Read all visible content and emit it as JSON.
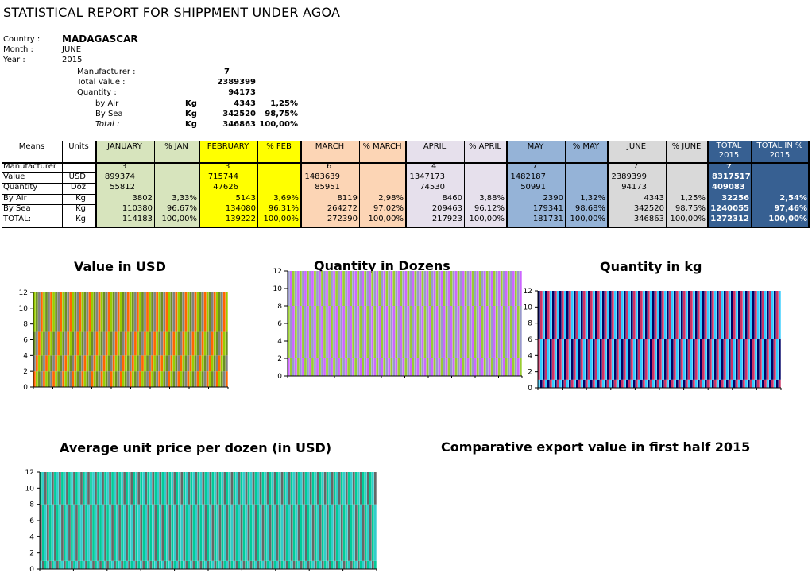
{
  "report": {
    "title": "STATISTICAL REPORT FOR SHIPPMENT UNDER AGOA",
    "country_label": "Country :",
    "country": "MADAGASCAR",
    "month_label": "Month :",
    "month": "JUNE",
    "year_label": "Year :",
    "year": "2015",
    "manufacturer_label": "Manufacturer :",
    "manufacturer": "7",
    "total_value_label": "Total Value :",
    "total_value": "2389399",
    "quantity_label": "Quantity :",
    "quantity": "94173",
    "by_air_label": "by Air",
    "by_air_unit": "Kg",
    "by_air_value": "4343",
    "by_air_pct": "1,25%",
    "by_sea_label": "By Sea",
    "by_sea_unit": "Kg",
    "by_sea_value": "342520",
    "by_sea_pct": "98,75%",
    "total_label": "Total :",
    "total_unit": "Kg",
    "total_value_kg": "346863",
    "total_pct": "100,00%"
  },
  "table": {
    "headers": {
      "means": "Means",
      "units": "Units",
      "jan": "JANUARY",
      "pjan": "% JAN",
      "feb": "FEBRUARY",
      "pfeb": "% FEB",
      "mar": "MARCH",
      "pmar": "% MARCH",
      "apr": "APRIL",
      "papr": "% APRIL",
      "may": "MAY",
      "pmay": "% MAY",
      "jun": "JUNE",
      "pjun": "% JUNE",
      "tot1": "TOTAL",
      "tot2": "2015",
      "totp1": "TOTAL IN %",
      "totp2": "2015"
    },
    "rows": [
      {
        "label": "Manufacturer",
        "unit": "",
        "jan": "3",
        "pjan": "",
        "feb": "3",
        "pfeb": "",
        "mar": "6",
        "pmar": "",
        "apr": "4",
        "papr": "",
        "may": "7",
        "pmay": "",
        "jun": "7",
        "pjun": "",
        "tot": "7",
        "totp": ""
      },
      {
        "label": "Value",
        "unit": "USD",
        "jan": "899374",
        "pjan": "",
        "feb": "715744",
        "pfeb": "",
        "mar": "1483639",
        "pmar": "",
        "apr": "1347173",
        "papr": "",
        "may": "1482187",
        "pmay": "",
        "jun": "2389399",
        "pjun": "",
        "tot": "8317517",
        "totp": ""
      },
      {
        "label": "Quantity",
        "unit": "Doz",
        "jan": "55812",
        "pjan": "",
        "feb": "47626",
        "pfeb": "",
        "mar": "85951",
        "pmar": "",
        "apr": "74530",
        "papr": "",
        "may": "50991",
        "pmay": "",
        "jun": "94173",
        "pjun": "",
        "tot": "409083",
        "totp": ""
      },
      {
        "label": "By Air",
        "unit": "Kg",
        "jan": "3802",
        "pjan": "3,33%",
        "feb": "5143",
        "pfeb": "3,69%",
        "mar": "8119",
        "pmar": "2,98%",
        "apr": "8460",
        "papr": "3,88%",
        "may": "2390",
        "pmay": "1,32%",
        "jun": "4343",
        "pjun": "1,25%",
        "tot": "32256",
        "totp": "2,54%"
      },
      {
        "label": "By Sea",
        "unit": "Kg",
        "jan": "110380",
        "pjan": "96,67%",
        "feb": "134080",
        "pfeb": "96,31%",
        "mar": "264272",
        "pmar": "97,02%",
        "apr": "209463",
        "papr": "96,12%",
        "may": "179341",
        "pmay": "98,68%",
        "jun": "342520",
        "pjun": "98,75%",
        "tot": "1240055",
        "totp": "97,46%"
      },
      {
        "label": "TOTAL:",
        "unit": "Kg",
        "jan": "114183",
        "pjan": "100,00%",
        "feb": "139222",
        "pfeb": "100,00%",
        "mar": "272390",
        "pmar": "100,00%",
        "apr": "217923",
        "papr": "100,00%",
        "may": "181731",
        "pmay": "100,00%",
        "jun": "346863",
        "pjun": "100,00%",
        "tot": "1272312",
        "totp": "100,00%"
      }
    ],
    "colors": {
      "jan": "#d7e4bd",
      "feb": "#ffff00",
      "mar": "#fcd5b5",
      "apr": "#e6e0ec",
      "may": "#95b3d7",
      "jun": "#d9d9d9",
      "total": "#376092"
    }
  },
  "chart_data": [
    {
      "type": "bar",
      "title": "Value in USD",
      "ylim": [
        0,
        12
      ],
      "yticks": [
        "0",
        "2",
        "4",
        "6",
        "8",
        "10",
        "12"
      ],
      "colors": [
        "#99cc00",
        "#6b8e23",
        "#808080",
        "#ff6600"
      ]
    },
    {
      "type": "bar",
      "title": "Quantity in Dozens",
      "ylim": [
        0,
        12
      ],
      "yticks": [
        "0",
        "2",
        "4",
        "6",
        "8",
        "10",
        "12"
      ],
      "colors": [
        "#cc66ff",
        "#99cc33",
        "#9999cc"
      ]
    },
    {
      "type": "bar",
      "title": "Quantity in kg",
      "ylim": [
        0,
        12
      ],
      "yticks": [
        "0",
        "2",
        "4",
        "6",
        "8",
        "10",
        "12"
      ],
      "colors": [
        "#33ccff",
        "#000066",
        "#cc3366"
      ]
    },
    {
      "type": "bar",
      "title": "Average unit price per dozen (in USD)",
      "ylim": [
        0,
        12
      ],
      "yticks": [
        "0",
        "2",
        "4",
        "6",
        "8",
        "10",
        "12"
      ],
      "colors": [
        "#33cccc",
        "#666666",
        "#00cc99"
      ]
    },
    {
      "type": "bar",
      "title": "Comparative export value in first half 2015"
    }
  ]
}
